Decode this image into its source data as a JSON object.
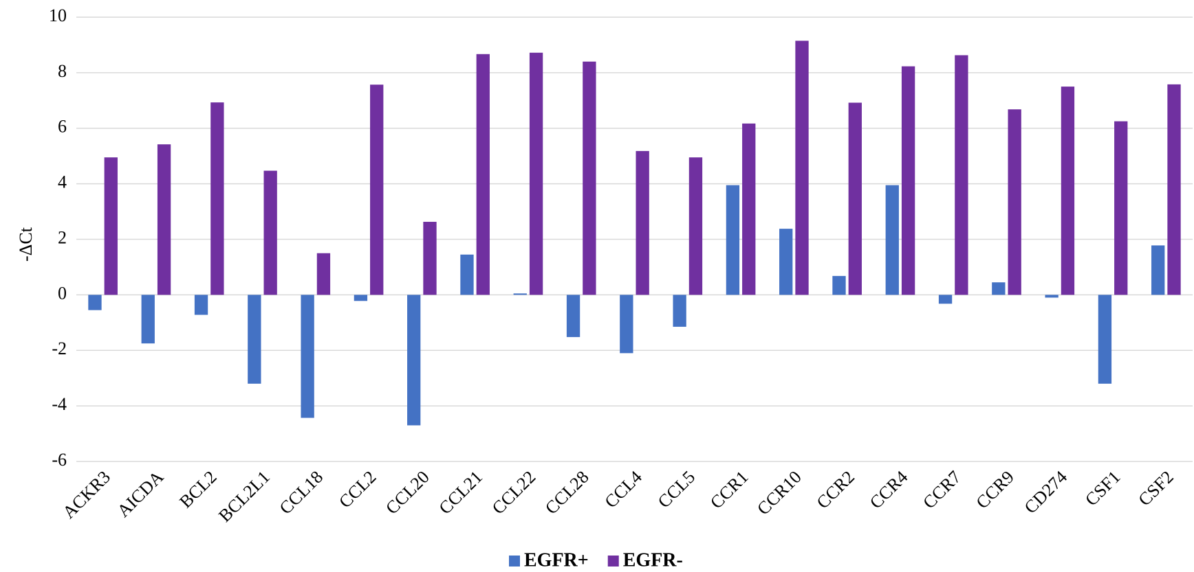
{
  "chart_data": {
    "type": "bar",
    "y_label": "-ΔCt",
    "categories": [
      "ACKR3",
      "AICDA",
      "BCL2",
      "BCL2L1",
      "CCL18",
      "CCL2",
      "CCL20",
      "CCL21",
      "CCL22",
      "CCL28",
      "CCL4",
      "CCL5",
      "CCR1",
      "CCR10",
      "CCR2",
      "CCR4",
      "CCR7",
      "CCR9",
      "CD274",
      "CSF1",
      "CSF2"
    ],
    "series": [
      {
        "name": "EGFR+",
        "color": "#4472c4",
        "values": [
          -0.55,
          -1.75,
          -0.72,
          -3.2,
          -4.43,
          -0.22,
          -4.7,
          1.45,
          0.05,
          -1.52,
          -2.1,
          -1.15,
          3.95,
          2.38,
          0.68,
          3.95,
          -0.32,
          0.45,
          -0.1,
          -3.2,
          1.78
        ]
      },
      {
        "name": "EGFR-",
        "color": "#7030a0",
        "values": [
          4.95,
          5.42,
          6.93,
          4.47,
          1.5,
          7.57,
          2.63,
          8.67,
          8.72,
          8.4,
          5.18,
          4.95,
          6.17,
          9.15,
          6.92,
          8.23,
          8.63,
          6.68,
          7.5,
          6.25,
          7.58
        ]
      }
    ],
    "ylim": [
      -6,
      10
    ],
    "yticks": [
      -6,
      -4,
      -2,
      0,
      2,
      4,
      6,
      8,
      10
    ],
    "grid": true,
    "legend": "bottom"
  }
}
